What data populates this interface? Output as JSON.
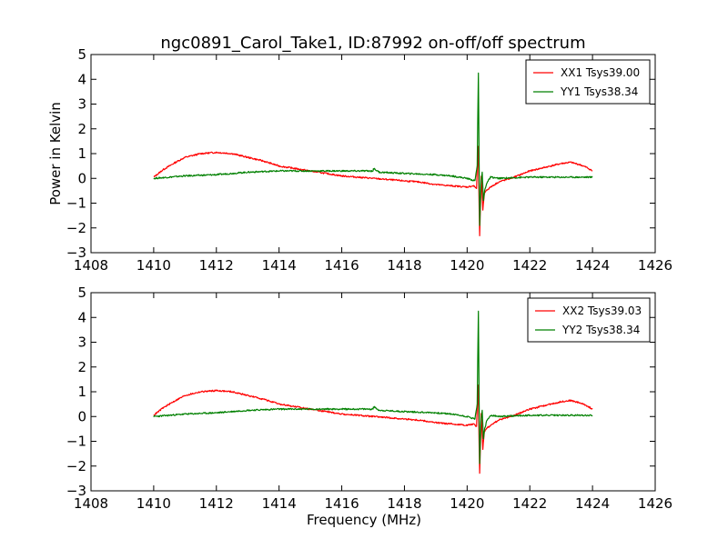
{
  "figure": {
    "title": "ngc0891_Carol_Take1, ID:87992 on-off/off spectrum"
  },
  "chart_data": [
    {
      "type": "line",
      "title": "ngc0891_Carol_Take1, ID:87992 on-off/off spectrum",
      "xlabel": "",
      "ylabel": "Power in Kelvin",
      "xlim": [
        1408,
        1426
      ],
      "ylim": [
        -3,
        5
      ],
      "xticks": [
        1408,
        1410,
        1412,
        1414,
        1416,
        1418,
        1420,
        1422,
        1424,
        1426
      ],
      "yticks": [
        -3,
        -2,
        -1,
        0,
        1,
        2,
        3,
        4,
        5
      ],
      "legend_position": "top-right",
      "series": [
        {
          "name": "XX1 Tsys39.00",
          "color": "#ff0000",
          "x": [
            1410.0,
            1410.3,
            1410.7,
            1411.0,
            1411.5,
            1412.0,
            1412.5,
            1413.0,
            1413.5,
            1414.0,
            1414.5,
            1415.0,
            1415.5,
            1416.0,
            1416.5,
            1417.0,
            1417.5,
            1418.0,
            1418.5,
            1419.0,
            1419.5,
            1420.0,
            1420.2,
            1420.3,
            1420.35,
            1420.4,
            1420.45,
            1420.5,
            1420.55,
            1420.6,
            1420.65,
            1420.75,
            1421.0,
            1421.5,
            1422.0,
            1422.5,
            1423.0,
            1423.3,
            1423.6,
            1423.8,
            1424.0
          ],
          "y": [
            0.05,
            0.35,
            0.65,
            0.85,
            1.0,
            1.05,
            1.0,
            0.85,
            0.7,
            0.5,
            0.4,
            0.3,
            0.2,
            0.1,
            0.05,
            0.0,
            -0.05,
            -0.1,
            -0.15,
            -0.25,
            -0.3,
            -0.35,
            -0.3,
            -0.4,
            1.3,
            -2.3,
            0.1,
            -1.3,
            -0.6,
            -0.5,
            -0.45,
            -0.35,
            -0.15,
            0.05,
            0.3,
            0.45,
            0.6,
            0.65,
            0.55,
            0.45,
            0.3
          ]
        },
        {
          "name": "YY1 Tsys38.34",
          "color": "#008000",
          "x": [
            1410.0,
            1410.5,
            1411.0,
            1412.0,
            1413.0,
            1414.0,
            1415.0,
            1416.0,
            1417.0,
            1417.01,
            1417.2,
            1418.0,
            1419.0,
            1419.5,
            1420.0,
            1420.25,
            1420.32,
            1420.36,
            1420.4,
            1420.44,
            1420.48,
            1420.52,
            1420.56,
            1420.62,
            1420.75,
            1421.0,
            1422.0,
            1423.0,
            1424.0
          ],
          "y": [
            0.0,
            0.05,
            0.1,
            0.15,
            0.25,
            0.3,
            0.3,
            0.3,
            0.3,
            0.4,
            0.25,
            0.2,
            0.15,
            0.1,
            0.0,
            -0.1,
            0.5,
            4.25,
            -1.9,
            -0.2,
            0.25,
            -0.9,
            -0.5,
            -0.2,
            0.05,
            0.0,
            0.05,
            0.05,
            0.05
          ]
        }
      ]
    },
    {
      "type": "line",
      "title": "",
      "xlabel": "Frequency (MHz)",
      "ylabel": "",
      "xlim": [
        1408,
        1426
      ],
      "ylim": [
        -3,
        5
      ],
      "xticks": [
        1408,
        1410,
        1412,
        1414,
        1416,
        1418,
        1420,
        1422,
        1424,
        1426
      ],
      "yticks": [
        -3,
        -2,
        -1,
        0,
        1,
        2,
        3,
        4,
        5
      ],
      "legend_position": "top-right",
      "series": [
        {
          "name": "XX2 Tsys39.03",
          "color": "#ff0000",
          "x": [
            1410.0,
            1410.3,
            1410.7,
            1411.0,
            1411.5,
            1412.0,
            1412.5,
            1413.0,
            1413.5,
            1414.0,
            1414.5,
            1415.0,
            1415.5,
            1416.0,
            1416.5,
            1417.0,
            1417.5,
            1418.0,
            1418.5,
            1419.0,
            1419.5,
            1420.0,
            1420.2,
            1420.3,
            1420.35,
            1420.4,
            1420.45,
            1420.5,
            1420.55,
            1420.6,
            1420.65,
            1420.75,
            1421.0,
            1421.5,
            1422.0,
            1422.5,
            1423.0,
            1423.3,
            1423.6,
            1423.8,
            1424.0
          ],
          "y": [
            0.05,
            0.35,
            0.65,
            0.85,
            1.0,
            1.05,
            1.0,
            0.85,
            0.7,
            0.5,
            0.4,
            0.3,
            0.2,
            0.1,
            0.05,
            0.0,
            -0.05,
            -0.1,
            -0.15,
            -0.25,
            -0.3,
            -0.35,
            -0.3,
            -0.4,
            1.3,
            -2.3,
            0.1,
            -1.3,
            -0.6,
            -0.5,
            -0.45,
            -0.35,
            -0.15,
            0.05,
            0.3,
            0.45,
            0.6,
            0.65,
            0.55,
            0.45,
            0.3
          ]
        },
        {
          "name": "YY2 Tsys38.34",
          "color": "#008000",
          "x": [
            1410.0,
            1410.5,
            1411.0,
            1412.0,
            1413.0,
            1414.0,
            1415.0,
            1416.0,
            1417.0,
            1417.01,
            1417.2,
            1418.0,
            1419.0,
            1419.5,
            1420.0,
            1420.25,
            1420.32,
            1420.36,
            1420.4,
            1420.44,
            1420.48,
            1420.52,
            1420.56,
            1420.62,
            1420.75,
            1421.0,
            1422.0,
            1423.0,
            1424.0
          ],
          "y": [
            0.0,
            0.05,
            0.1,
            0.15,
            0.25,
            0.3,
            0.3,
            0.3,
            0.3,
            0.4,
            0.25,
            0.2,
            0.15,
            0.1,
            0.0,
            -0.1,
            0.5,
            4.25,
            -1.9,
            -0.2,
            0.25,
            -0.9,
            -0.5,
            -0.2,
            0.05,
            0.0,
            0.05,
            0.05,
            0.05
          ]
        }
      ]
    }
  ]
}
